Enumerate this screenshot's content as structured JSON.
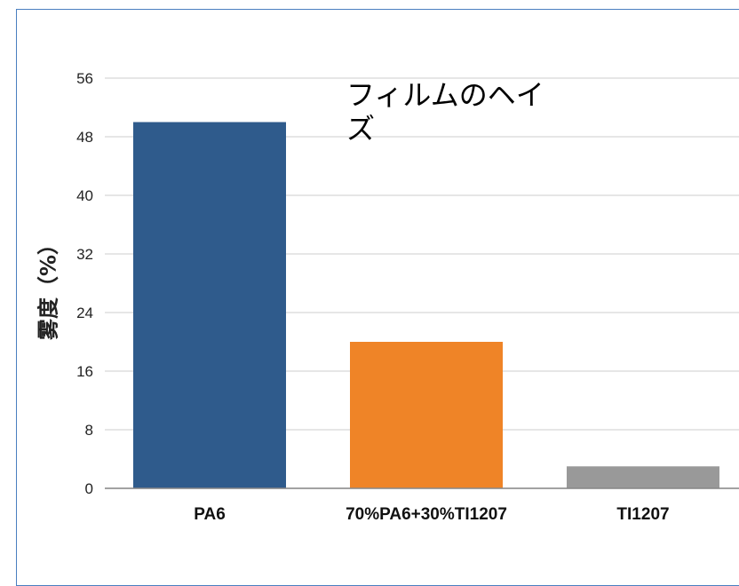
{
  "chart_data": {
    "type": "bar",
    "title": "フィルムのヘイズ",
    "xlabel": "",
    "ylabel": "雾度（%）",
    "categories": [
      "PA6",
      "70%PA6+30%TI1207",
      "TI1207"
    ],
    "values": [
      50,
      20,
      3
    ],
    "colors": [
      "#2f5b8c",
      "#ef8427",
      "#999999"
    ],
    "ylim": [
      0,
      56
    ],
    "yticks": [
      "0",
      "8",
      "16",
      "24",
      "32",
      "40",
      "48",
      "56"
    ],
    "grid": true,
    "legend": "none"
  }
}
